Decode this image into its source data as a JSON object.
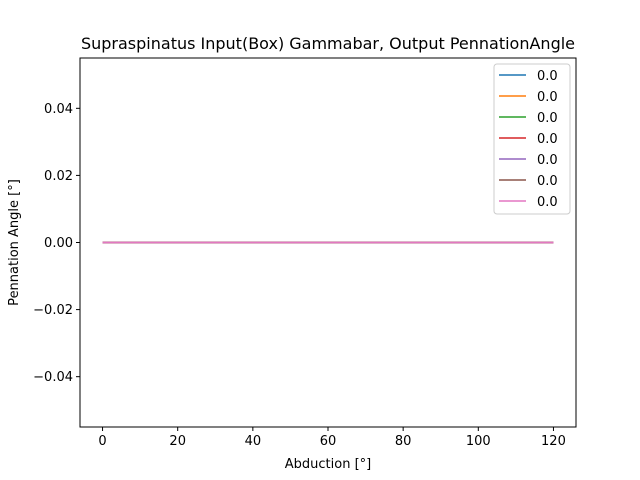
{
  "chart_data": {
    "type": "line",
    "title": "Supraspinatus Input(Box) Gammabar, Output PennationAngle",
    "xlabel": "Abduction [°]",
    "ylabel": "Pennation Angle [°]",
    "xlim": [
      -6,
      126
    ],
    "ylim": [
      -0.055,
      0.055
    ],
    "xticks": [
      0,
      20,
      40,
      60,
      80,
      100,
      120
    ],
    "xtick_labels": [
      "0",
      "20",
      "40",
      "60",
      "80",
      "100",
      "120"
    ],
    "yticks": [
      -0.04,
      -0.02,
      0.0,
      0.02,
      0.04
    ],
    "ytick_labels": [
      "−0.04",
      "−0.02",
      "0.00",
      "0.02",
      "0.04"
    ],
    "grid": false,
    "legend_position": "top-right",
    "x": [
      0,
      120
    ],
    "series": [
      {
        "name": "0.0",
        "color": "#1f77b4",
        "values": [
          0.0,
          0.0
        ]
      },
      {
        "name": "0.0",
        "color": "#ff7f0e",
        "values": [
          0.0,
          0.0
        ]
      },
      {
        "name": "0.0",
        "color": "#2ca02c",
        "values": [
          0.0,
          0.0
        ]
      },
      {
        "name": "0.0",
        "color": "#d62728",
        "values": [
          0.0,
          0.0
        ]
      },
      {
        "name": "0.0",
        "color": "#9467bd",
        "values": [
          0.0,
          0.0
        ]
      },
      {
        "name": "0.0",
        "color": "#8c564b",
        "values": [
          0.0,
          0.0
        ]
      },
      {
        "name": "0.0",
        "color": "#e377c2",
        "values": [
          0.0,
          0.0
        ]
      }
    ]
  }
}
